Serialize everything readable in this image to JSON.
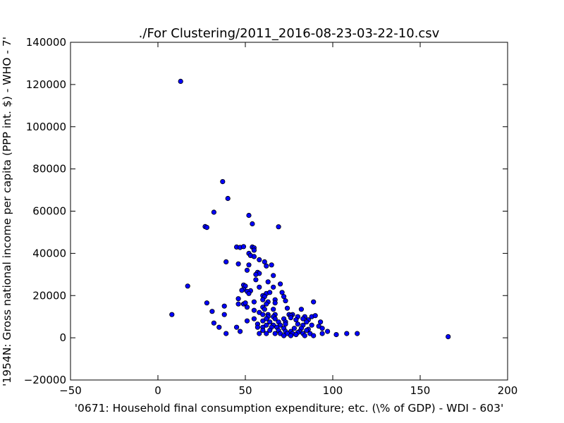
{
  "chart_data": {
    "type": "scatter",
    "title": "./For Clustering/2011_2016-08-23-03-22-10.csv",
    "xlabel": "'0671: Household final consumption expenditure; etc.  (\\% of GDP) - WDI - 603'",
    "ylabel": "'1954N: Gross national income per capita (PPP int. $) - WHO - 7'",
    "xlim": [
      -50,
      200
    ],
    "ylim": [
      -20000,
      140000
    ],
    "xticks": [
      "−50",
      "0",
      "50",
      "100",
      "150",
      "200"
    ],
    "yticks": [
      "−20000",
      "0",
      "20000",
      "40000",
      "60000",
      "80000",
      "100000",
      "120000",
      "140000"
    ],
    "grid": false,
    "marker_color": "#0000ff",
    "edge_color": "#000000",
    "points": [
      [
        13,
        121500
      ],
      [
        37,
        74000
      ],
      [
        40,
        66000
      ],
      [
        32,
        59500
      ],
      [
        52,
        58000
      ],
      [
        54,
        54000
      ],
      [
        27,
        52700
      ],
      [
        28,
        52300
      ],
      [
        69,
        52600
      ],
      [
        45,
        43000
      ],
      [
        47,
        42800
      ],
      [
        49,
        43200
      ],
      [
        54,
        43000
      ],
      [
        55,
        42600
      ],
      [
        55,
        41500
      ],
      [
        52,
        40000
      ],
      [
        53,
        39000
      ],
      [
        55,
        38500
      ],
      [
        58,
        37000
      ],
      [
        61,
        36000
      ],
      [
        39,
        36000
      ],
      [
        46,
        35000
      ],
      [
        52,
        34500
      ],
      [
        62,
        34000
      ],
      [
        65,
        34500
      ],
      [
        51,
        32000
      ],
      [
        57,
        31000
      ],
      [
        58,
        30500
      ],
      [
        56,
        30000
      ],
      [
        66,
        29500
      ],
      [
        56,
        27500
      ],
      [
        63,
        26500
      ],
      [
        70,
        25500
      ],
      [
        49,
        25000
      ],
      [
        50,
        24500
      ],
      [
        17,
        24500
      ],
      [
        58,
        24000
      ],
      [
        66,
        24000
      ],
      [
        49,
        23000
      ],
      [
        48,
        22500
      ],
      [
        53,
        22300
      ],
      [
        51,
        22000
      ],
      [
        52,
        21000
      ],
      [
        62,
        21000
      ],
      [
        64,
        21500
      ],
      [
        71,
        21500
      ],
      [
        60,
        20000
      ],
      [
        61,
        19500
      ],
      [
        72,
        19500
      ],
      [
        60,
        18000
      ],
      [
        67,
        18000
      ],
      [
        46,
        18500
      ],
      [
        55,
        17000
      ],
      [
        63,
        17000
      ],
      [
        73,
        17500
      ],
      [
        89,
        17000
      ],
      [
        46,
        16000
      ],
      [
        49,
        16000
      ],
      [
        50,
        16500
      ],
      [
        62,
        16000
      ],
      [
        67,
        16500
      ],
      [
        28,
        16500
      ],
      [
        51,
        14500
      ],
      [
        38,
        15000
      ],
      [
        60,
        14500
      ],
      [
        61,
        13500
      ],
      [
        66,
        13500
      ],
      [
        74,
        14000
      ],
      [
        82,
        13500
      ],
      [
        55,
        13000
      ],
      [
        31,
        12500
      ],
      [
        58,
        12000
      ],
      [
        60,
        11000
      ],
      [
        63,
        11000
      ],
      [
        67,
        11000
      ],
      [
        75,
        11000
      ],
      [
        77,
        11000
      ],
      [
        38,
        11000
      ],
      [
        8,
        11000
      ],
      [
        63,
        10000
      ],
      [
        66,
        10000
      ],
      [
        76,
        10500
      ],
      [
        80,
        10000
      ],
      [
        84,
        10000
      ],
      [
        88,
        10000
      ],
      [
        90,
        10500
      ],
      [
        55,
        9000
      ],
      [
        62,
        9000
      ],
      [
        67,
        9000
      ],
      [
        72,
        9000
      ],
      [
        76,
        9500
      ],
      [
        79,
        8500
      ],
      [
        83,
        9000
      ],
      [
        86,
        8500
      ],
      [
        51,
        8000
      ],
      [
        60,
        8000
      ],
      [
        64,
        7500
      ],
      [
        69,
        7500
      ],
      [
        73,
        7500
      ],
      [
        85,
        7500
      ],
      [
        93,
        7500
      ],
      [
        32,
        7000
      ],
      [
        57,
        6500
      ],
      [
        62,
        6000
      ],
      [
        66,
        6000
      ],
      [
        70,
        6000
      ],
      [
        73,
        6500
      ],
      [
        80,
        6500
      ],
      [
        83,
        6000
      ],
      [
        88,
        6000
      ],
      [
        92,
        5500
      ],
      [
        35,
        5000
      ],
      [
        45,
        5000
      ],
      [
        57,
        5000
      ],
      [
        60,
        5000
      ],
      [
        65,
        5000
      ],
      [
        68,
        5000
      ],
      [
        72,
        4500
      ],
      [
        78,
        4500
      ],
      [
        82,
        4500
      ],
      [
        86,
        4000
      ],
      [
        94,
        4500
      ],
      [
        47,
        3000
      ],
      [
        60,
        3500
      ],
      [
        64,
        3500
      ],
      [
        69,
        3500
      ],
      [
        73,
        3000
      ],
      [
        76,
        3000
      ],
      [
        81,
        3000
      ],
      [
        85,
        3500
      ],
      [
        97,
        3000
      ],
      [
        39,
        2000
      ],
      [
        58,
        2000
      ],
      [
        62,
        2000
      ],
      [
        67,
        2000
      ],
      [
        70,
        2000
      ],
      [
        74,
        2000
      ],
      [
        77,
        2000
      ],
      [
        80,
        2500
      ],
      [
        83,
        2000
      ],
      [
        87,
        2000
      ],
      [
        94,
        2000
      ],
      [
        102,
        1500
      ],
      [
        108,
        2000
      ],
      [
        114,
        2000
      ],
      [
        72,
        1000
      ],
      [
        76,
        1000
      ],
      [
        79,
        1500
      ],
      [
        84,
        1000
      ],
      [
        89,
        1000
      ],
      [
        166,
        500
      ]
    ]
  }
}
